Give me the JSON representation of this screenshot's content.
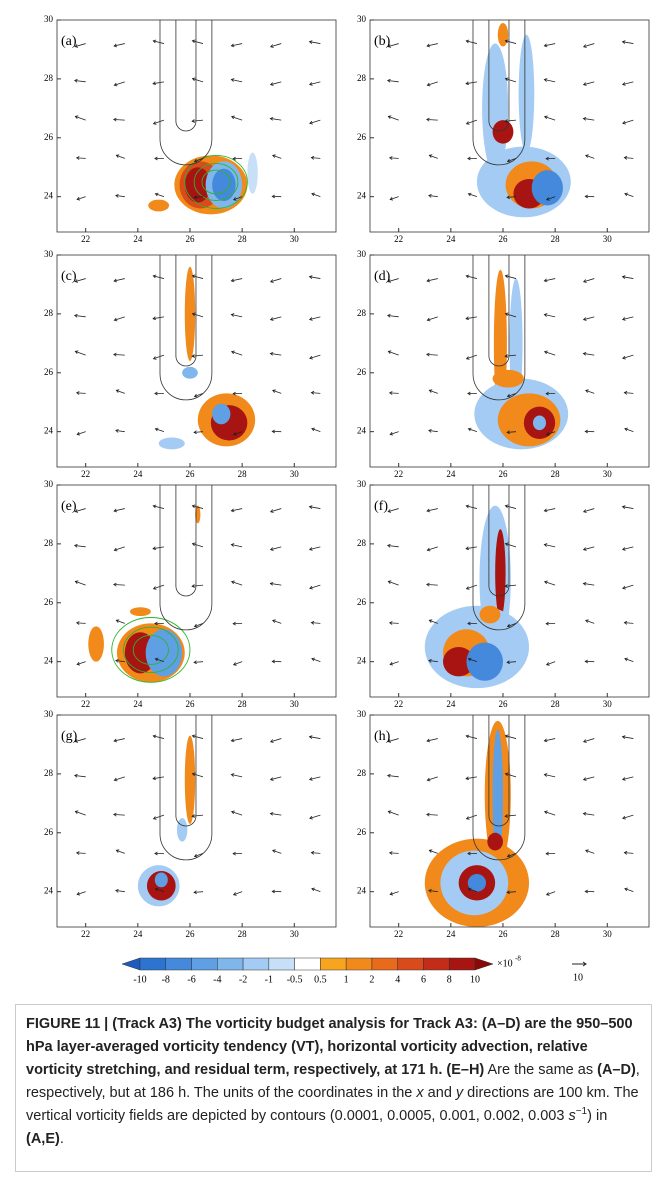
{
  "figure": {
    "panels": [
      {
        "label": "(a)"
      },
      {
        "label": "(b)"
      },
      {
        "label": "(c)"
      },
      {
        "label": "(d)"
      },
      {
        "label": "(e)"
      },
      {
        "label": "(f)"
      },
      {
        "label": "(g)"
      },
      {
        "label": "(h)"
      }
    ],
    "xlim": [
      20.9,
      31.6
    ],
    "ylim": [
      22.8,
      30
    ],
    "xticks": [
      22,
      24,
      26,
      28,
      30
    ],
    "yticks": [
      24,
      26,
      28,
      30
    ]
  },
  "colorbar": {
    "levels": [
      -10,
      -8,
      -6,
      -4,
      -2,
      -1,
      -0.5,
      0.5,
      1,
      2,
      4,
      6,
      8,
      10
    ],
    "colors": [
      "#1c5cc0",
      "#2c74d0",
      "#4489db",
      "#5f9fe4",
      "#7fb6ec",
      "#a3cbf3",
      "#c7e0f8",
      "#ffffff",
      "#f7a51f",
      "#f18a1a",
      "#e86a1a",
      "#d94b1a",
      "#c32c17",
      "#a81412",
      "#8a0808"
    ],
    "unit_base": "×10",
    "unit_exp": "-8"
  },
  "vector_legend": {
    "label": "10"
  },
  "caption": {
    "segments": [
      {
        "text": "FIGURE 11 | (Track A3) The vorticity budget analysis for Track A3: (A–D) are the 950–500 hPa layer-averaged vorticity tendency (VT), horizontal vorticity advection, relative vorticity stretching, and residual term, respectively, at 171 h.",
        "style": "bold"
      },
      {
        "text": " ",
        "style": "plain"
      },
      {
        "text": "(E–H)",
        "style": "bold"
      },
      {
        "text": " Are the same as ",
        "style": "plain"
      },
      {
        "text": "(A–D)",
        "style": "bold"
      },
      {
        "text": ", respectively, but at 186 h. The units of the coordinates in the ",
        "style": "plain"
      },
      {
        "text": "x",
        "style": "italic"
      },
      {
        "text": " and ",
        "style": "plain"
      },
      {
        "text": "y",
        "style": "italic"
      },
      {
        "text": " directions are 100 km. The vertical vorticity fields are depicted by contours (0.0001, 0.0005, 0.001, 0.002, 0.003 ",
        "style": "plain"
      },
      {
        "text": "s",
        "style": "italic"
      },
      {
        "text": "−1",
        "style": "sup"
      },
      {
        "text": ") in ",
        "style": "plain"
      },
      {
        "text": "(A,E)",
        "style": "bold"
      },
      {
        "text": ".",
        "style": "plain"
      }
    ]
  }
}
